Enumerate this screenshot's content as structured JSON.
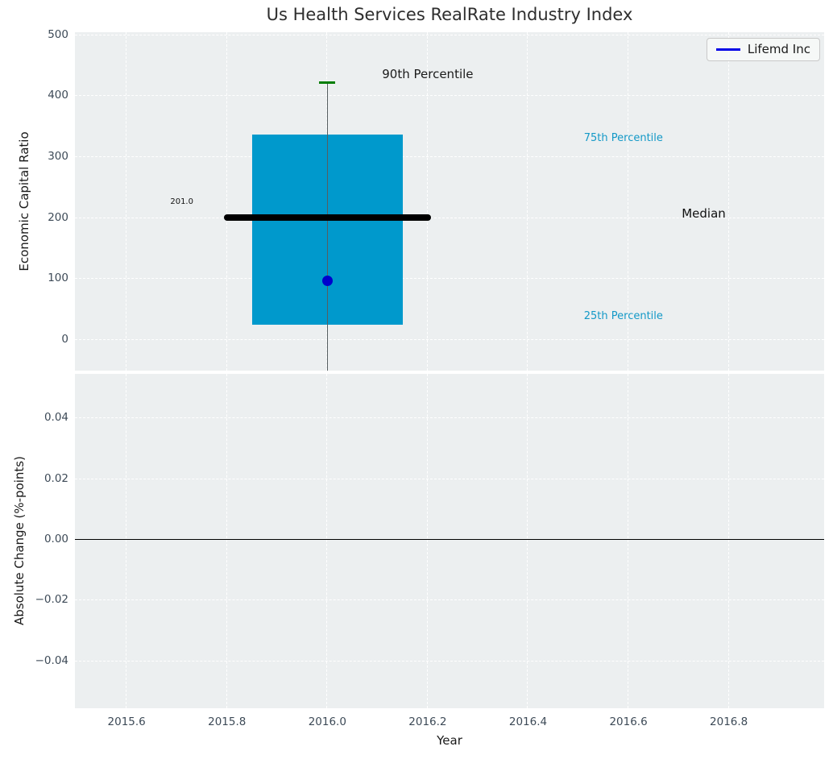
{
  "title": "Us Health Services RealRate Industry Index",
  "legend": {
    "label": "Lifemd Inc",
    "line_color": "#0000e6"
  },
  "colors": {
    "figure_bg": "#ffffff",
    "axes_bg": "#eceff0",
    "grid": "#ffffff",
    "box_fill": "#0099cc",
    "median_line": "#000000",
    "whisker": "#565e60",
    "cap_90th": "#007d00",
    "company_dot": "#0000cd",
    "tick_label": "#3d4a57",
    "axis_label": "#1a1a1a",
    "annotation_cyan": "#1499c7",
    "annotation_black": "#1a1a1a",
    "zero_line": "#000000"
  },
  "chart_data": [
    {
      "type": "boxplot",
      "title": "Us Health Services RealRate Industry Index",
      "ylabel": "Economic Capital Ratio",
      "ylim": [
        -50,
        505
      ],
      "yticks": [
        {
          "v": 500,
          "label": "500"
        },
        {
          "v": 400,
          "label": "400"
        },
        {
          "v": 300,
          "label": "300"
        },
        {
          "v": 200,
          "label": "200"
        },
        {
          "v": 100,
          "label": "100"
        },
        {
          "v": 0,
          "label": "0"
        }
      ],
      "xlim": [
        2015.497,
        2016.99
      ],
      "xticks": [
        {
          "v": 2015.6,
          "label": "2015.6"
        },
        {
          "v": 2015.8,
          "label": "2015.8"
        },
        {
          "v": 2016.0,
          "label": "2016.0"
        },
        {
          "v": 2016.2,
          "label": "2016.2"
        },
        {
          "v": 2016.4,
          "label": "2016.4"
        },
        {
          "v": 2016.6,
          "label": "2016.6"
        },
        {
          "v": 2016.8,
          "label": "2016.8"
        }
      ],
      "show_x_labels": false,
      "grid": true,
      "legend_position": "upper right",
      "box": {
        "x_center": 2016.0,
        "box_halfwidth_years": 0.15,
        "median_halfwidth_years": 0.206,
        "cap_halfwidth_years": 0.016,
        "p90": 423,
        "p75": 337,
        "median": 201.0,
        "p25": 25,
        "whisker_low_clipped": -50,
        "median_label": "201.0"
      },
      "series": [
        {
          "name": "Lifemd Inc",
          "color": "#0000cd",
          "x": [
            2016.0
          ],
          "y": [
            98
          ]
        }
      ],
      "annotations": [
        {
          "id": "90th-percentile",
          "text": "90th Percentile",
          "x": 2016.2,
          "y": 434,
          "size": 15,
          "color": "#1a1a1a"
        },
        {
          "id": "75th-percentile",
          "text": "75th Percentile",
          "x": 2016.59,
          "y": 329,
          "size": 13,
          "color": "#1499c7"
        },
        {
          "id": "median",
          "text": "Median",
          "x": 2016.75,
          "y": 205,
          "size": 15,
          "color": "#111111"
        },
        {
          "id": "25th-percentile",
          "text": "25th Percentile",
          "x": 2016.59,
          "y": 37,
          "size": 13,
          "color": "#1499c7"
        },
        {
          "id": "median-value",
          "text": "201.0",
          "x": 2015.71,
          "y": 224,
          "size": 10,
          "color": "#111111"
        }
      ]
    },
    {
      "type": "line",
      "ylabel": "Absolute Change (%-points)",
      "xlabel": "Year",
      "ylim": [
        -0.0555,
        0.0547
      ],
      "yticks": [
        {
          "v": 0.04,
          "label": "0.04"
        },
        {
          "v": 0.02,
          "label": "0.02"
        },
        {
          "v": 0.0,
          "label": "0.00"
        },
        {
          "v": -0.02,
          "label": "−0.02"
        },
        {
          "v": -0.04,
          "label": "−0.04"
        }
      ],
      "xlim": [
        2015.497,
        2016.99
      ],
      "xticks": [
        {
          "v": 2015.6,
          "label": "2015.6"
        },
        {
          "v": 2015.8,
          "label": "2015.8"
        },
        {
          "v": 2016.0,
          "label": "2016.0"
        },
        {
          "v": 2016.2,
          "label": "2016.2"
        },
        {
          "v": 2016.4,
          "label": "2016.4"
        },
        {
          "v": 2016.6,
          "label": "2016.6"
        },
        {
          "v": 2016.8,
          "label": "2016.8"
        }
      ],
      "show_x_labels": true,
      "grid": true,
      "zero_line": true,
      "series": []
    }
  ]
}
